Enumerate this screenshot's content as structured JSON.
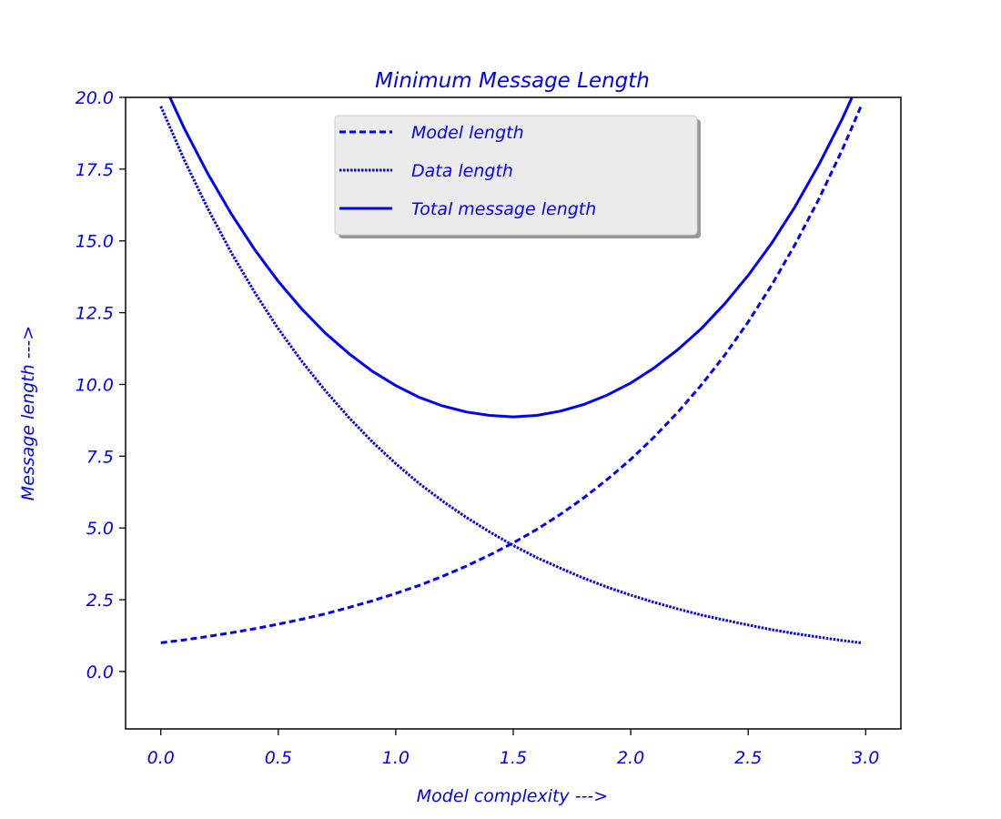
{
  "chart_data": {
    "type": "line",
    "title": "Minimum Message Length",
    "xlabel": "Model complexity --->",
    "ylabel": "Message length --->",
    "xlim": [
      -0.15,
      3.15
    ],
    "ylim": [
      -2.0,
      20.0
    ],
    "xticks": [
      0.0,
      0.5,
      1.0,
      1.5,
      2.0,
      2.5,
      3.0
    ],
    "xtick_labels": [
      "0.0",
      "0.5",
      "1.0",
      "1.5",
      "2.0",
      "2.5",
      "3.0"
    ],
    "yticks": [
      0.0,
      2.5,
      5.0,
      7.5,
      10.0,
      12.5,
      15.0,
      17.5,
      20.0
    ],
    "ytick_labels": [
      "0.0",
      "2.5",
      "5.0",
      "7.5",
      "10.0",
      "12.5",
      "15.0",
      "17.5",
      "20.0"
    ],
    "grid": false,
    "legend_position": "upper center",
    "text_color": "#0000ff",
    "x": [
      0.0,
      0.1,
      0.2,
      0.3,
      0.4,
      0.5,
      0.6,
      0.7,
      0.8,
      0.9,
      1.0,
      1.1,
      1.2,
      1.3,
      1.4,
      1.5,
      1.6,
      1.7,
      1.8,
      1.9,
      2.0,
      2.1,
      2.2,
      2.3,
      2.4,
      2.5,
      2.6,
      2.7,
      2.8,
      2.9,
      2.98
    ],
    "series": [
      {
        "name": "Model length",
        "style": "dashed",
        "color": "#0000ff",
        "values": [
          1.0,
          1.1,
          1.22,
          1.35,
          1.49,
          1.65,
          1.82,
          2.01,
          2.23,
          2.46,
          2.72,
          3.0,
          3.32,
          3.67,
          4.06,
          4.48,
          4.95,
          5.47,
          6.05,
          6.69,
          7.39,
          8.17,
          9.03,
          9.97,
          11.02,
          12.18,
          13.46,
          14.88,
          16.44,
          18.17,
          19.69
        ]
      },
      {
        "name": "Data length",
        "style": "dotted",
        "color": "#0000ff",
        "values": [
          19.69,
          17.82,
          16.12,
          14.59,
          13.2,
          11.94,
          10.81,
          9.78,
          8.85,
          8.0,
          7.24,
          6.55,
          5.93,
          5.37,
          4.86,
          4.39,
          3.97,
          3.6,
          3.25,
          2.94,
          2.66,
          2.41,
          2.18,
          1.97,
          1.79,
          1.62,
          1.46,
          1.32,
          1.2,
          1.08,
          1.0
        ]
      },
      {
        "name": "Total message length",
        "style": "solid",
        "color": "#0000ff",
        "values": [
          20.69,
          18.92,
          17.34,
          15.94,
          14.69,
          13.59,
          12.63,
          11.79,
          11.08,
          10.46,
          9.96,
          9.55,
          9.25,
          9.04,
          8.92,
          8.87,
          8.92,
          9.07,
          9.3,
          9.63,
          10.05,
          10.58,
          11.21,
          11.94,
          12.81,
          13.8,
          14.92,
          16.2,
          17.64,
          19.25,
          20.69
        ]
      }
    ]
  }
}
